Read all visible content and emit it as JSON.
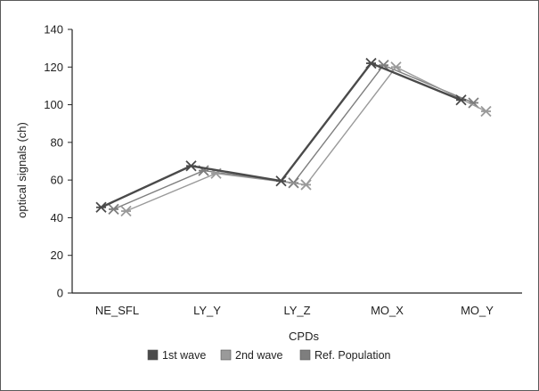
{
  "chart_data": {
    "type": "line",
    "title": "",
    "xlabel": "CPDs",
    "ylabel": "optical signals (ch)",
    "categories": [
      "NE_SFL",
      "LY_Y",
      "LY_Z",
      "MO_X",
      "MO_Y"
    ],
    "ylim": [
      0,
      140
    ],
    "yticks": [
      0,
      20,
      40,
      60,
      80,
      100,
      120,
      140
    ],
    "grid": false,
    "legend_position": "bottom",
    "marker": "asterisk",
    "series": [
      {
        "name": "1st wave",
        "color": "#4a4a4a",
        "values": [
          45.5,
          67.5,
          59.5,
          122,
          102.5
        ]
      },
      {
        "name": "2nd wave",
        "color": "#9a9a9a",
        "values": [
          43.5,
          63.5,
          57.5,
          120,
          96.5
        ]
      },
      {
        "name": "Ref. Population",
        "color": "#7e7e7e",
        "values": [
          44.5,
          65,
          58.5,
          121,
          101
        ]
      }
    ]
  }
}
